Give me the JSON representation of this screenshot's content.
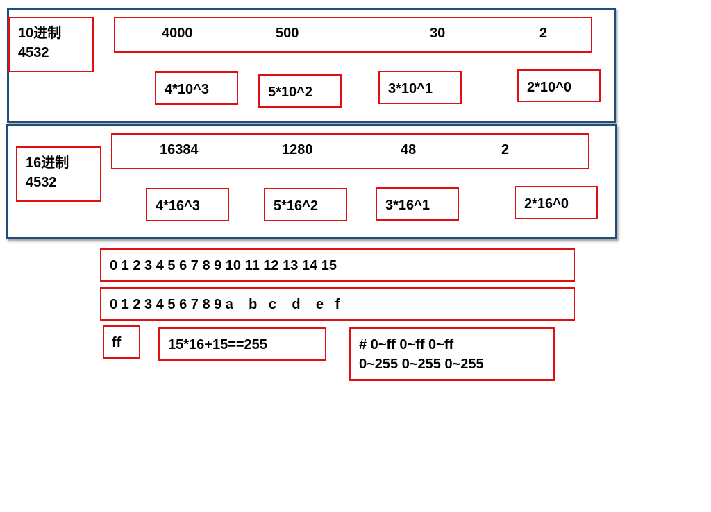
{
  "decimal": {
    "title": "10进制",
    "number": "4532",
    "place_values": [
      "4000",
      "500",
      "30",
      "2"
    ],
    "terms": [
      "4*10^3",
      "5*10^2",
      "3*10^1",
      "2*10^0"
    ]
  },
  "hex": {
    "title": "16进制",
    "number": "4532",
    "place_values": [
      "16384",
      "1280",
      "48",
      "2"
    ],
    "terms": [
      "4*16^3",
      "5*16^2",
      "3*16^1",
      "2*16^0"
    ]
  },
  "digits_decimal": "0 1 2 3 4 5 6 7 8 9 10 11 12 13 14 15",
  "digits_hex": "0 1 2 3 4 5 6 7 8 9 a    b   c    d    e   f",
  "ff_label": "ff",
  "ff_equation": "15*16+15==255",
  "color_line1": "# 0~ff 0~ff 0~ff",
  "color_line2": "0~255 0~255 0~255",
  "colors": {
    "box_border": "#e01010",
    "panel_border": "#1f4e79"
  }
}
